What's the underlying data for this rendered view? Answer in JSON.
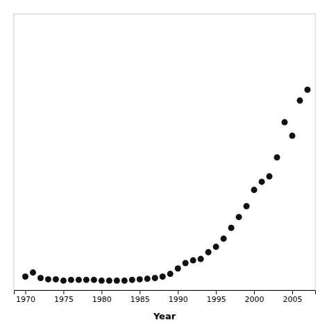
{
  "chart_data": {
    "type": "scatter",
    "x": [
      1970,
      1971,
      1972,
      1973,
      1974,
      1975,
      1976,
      1977,
      1978,
      1979,
      1980,
      1981,
      1982,
      1983,
      1984,
      1985,
      1986,
      1987,
      1988,
      1989,
      1990,
      1991,
      1992,
      1993,
      1994,
      1995,
      1996,
      1997,
      1998,
      1999,
      2000,
      2001,
      2002,
      2003,
      2004,
      2005,
      2006,
      2007
    ],
    "values": [
      3.0,
      4.5,
      2.5,
      2.0,
      2.0,
      1.5,
      1.8,
      1.8,
      1.8,
      1.8,
      1.5,
      1.5,
      1.5,
      1.5,
      1.8,
      2.0,
      2.2,
      2.5,
      3.0,
      4.0,
      6.0,
      8.0,
      9.0,
      9.5,
      12.0,
      14.0,
      17.0,
      21.0,
      25.0,
      29.0,
      35.0,
      38.0,
      40.0,
      47.0,
      60.0,
      55.0,
      68.0,
      72.0
    ],
    "xlim": [
      1968.5,
      2008
    ],
    "ylim": [
      -2,
      100
    ],
    "xticks": [
      1970,
      1975,
      1980,
      1985,
      1990,
      1995,
      2000,
      2005
    ],
    "xlabel": "Year",
    "color": "#111111",
    "marker": "circle",
    "grid": false,
    "tick_labels": "x"
  }
}
